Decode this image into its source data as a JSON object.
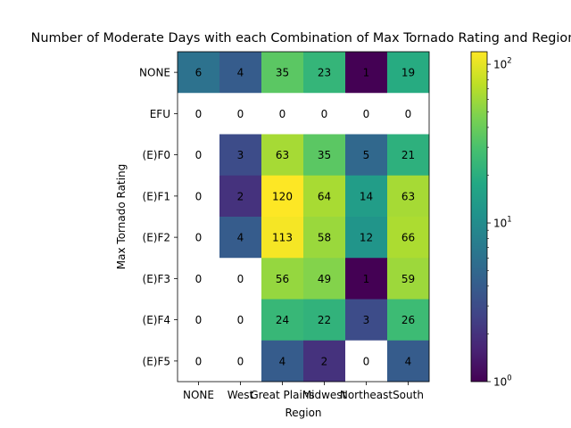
{
  "chart_data": {
    "type": "heatmap",
    "title": "Number of Moderate Days with each Combination of Max Tornado Rating and Region",
    "xlabel": "Region",
    "ylabel": "Max Tornado Rating",
    "x_categories": [
      "NONE",
      "West",
      "Great Plains",
      "Midwest",
      "Northeast",
      "South"
    ],
    "y_categories": [
      "NONE",
      "EFU",
      "(E)F0",
      "(E)F1",
      "(E)F2",
      "(E)F3",
      "(E)F4",
      "(E)F5"
    ],
    "values": [
      [
        6,
        4,
        35,
        23,
        1,
        19
      ],
      [
        0,
        0,
        0,
        0,
        0,
        0
      ],
      [
        0,
        3,
        63,
        35,
        5,
        21
      ],
      [
        0,
        2,
        120,
        64,
        14,
        63
      ],
      [
        0,
        4,
        113,
        58,
        12,
        66
      ],
      [
        0,
        0,
        56,
        49,
        1,
        59
      ],
      [
        0,
        0,
        24,
        22,
        3,
        26
      ],
      [
        0,
        0,
        4,
        2,
        0,
        4
      ]
    ],
    "color_scale": "log",
    "colormap": "viridis",
    "colorbar": {
      "range": [
        1,
        120
      ],
      "ticks": [
        {
          "value": 1,
          "label": "10^0"
        },
        {
          "value": 10,
          "label": "10^1"
        },
        {
          "value": 100,
          "label": "10^2"
        }
      ]
    },
    "zero_color": "#ffffff"
  }
}
